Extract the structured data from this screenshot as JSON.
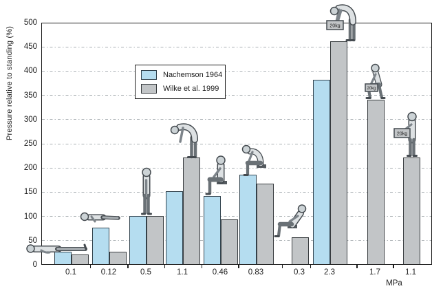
{
  "chart_data": {
    "type": "bar",
    "title": "",
    "ylabel": "Pressure relative to standing (%)",
    "unit_label": "MPa",
    "ylim": [
      0,
      500
    ],
    "ytick_step": 50,
    "grid": "horizontal dash-dot lines every 50",
    "legend_position": "upper-left-inside",
    "weight_label": "20kg",
    "colors": {
      "nachemson_fill": "#b5ddf0",
      "nachemson_border": "#32434e",
      "wilke_fill": "#c2c5c7",
      "wilke_border": "#383c3f",
      "axis": "#1a1a1a",
      "gridline": "#a7adb1"
    },
    "series": [
      {
        "name": "Nachemson 1964",
        "key": "nachemson"
      },
      {
        "name": "Wilke et al. 1999",
        "key": "wilke"
      }
    ],
    "categories_mpa": [
      "0.1",
      "0.12",
      "0.5",
      "1.1",
      "0.46",
      "0.83",
      "0.3",
      "2.3",
      "1.7",
      "1.1"
    ],
    "groups": [
      {
        "mpa": "0.1",
        "posture": "lying-supine",
        "nachemson": 25,
        "wilke": 20
      },
      {
        "mpa": "0.12",
        "posture": "lying-on-side",
        "nachemson": 75,
        "wilke": 25
      },
      {
        "mpa": "0.5",
        "posture": "standing",
        "nachemson": 100,
        "wilke": 100
      },
      {
        "mpa": "1.1",
        "posture": "standing-bent-forward",
        "nachemson": 150,
        "wilke": 220
      },
      {
        "mpa": "0.46",
        "posture": "sitting",
        "nachemson": 140,
        "wilke": 92
      },
      {
        "mpa": "0.83",
        "posture": "sitting-bent-forward",
        "nachemson": 185,
        "wilke": 166
      },
      {
        "mpa": "0.3",
        "posture": "sitting-reclined",
        "nachemson": null,
        "wilke": 55
      },
      {
        "mpa": "2.3",
        "posture": "lifting-20kg-stooped",
        "nachemson": 380,
        "wilke": 460
      },
      {
        "mpa": "1.7",
        "posture": "lifting-20kg-squat",
        "nachemson": null,
        "wilke": 340
      },
      {
        "mpa": "1.1",
        "posture": "holding-20kg-upright",
        "nachemson": null,
        "wilke": 220
      }
    ]
  }
}
